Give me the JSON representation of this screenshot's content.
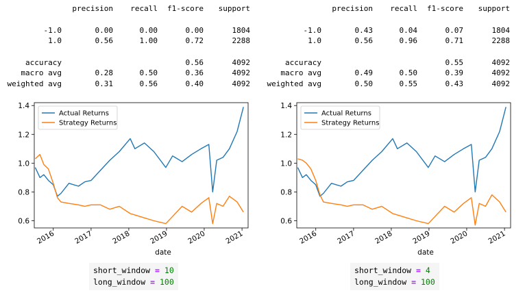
{
  "reports": [
    {
      "header": [
        "precision",
        "recall",
        "f1-score",
        "support"
      ],
      "rows": [
        {
          "label": "-1.0",
          "precision": "0.00",
          "recall": "0.00",
          "f1": "0.00",
          "support": "1804"
        },
        {
          "label": "1.0",
          "precision": "0.56",
          "recall": "1.00",
          "f1": "0.72",
          "support": "2288"
        },
        {
          "label": "accuracy",
          "precision": "",
          "recall": "",
          "f1": "0.56",
          "support": "4092"
        },
        {
          "label": "macro avg",
          "precision": "0.28",
          "recall": "0.50",
          "f1": "0.36",
          "support": "4092"
        },
        {
          "label": "weighted avg",
          "precision": "0.31",
          "recall": "0.56",
          "f1": "0.40",
          "support": "4092"
        }
      ]
    },
    {
      "header": [
        "precision",
        "recall",
        "f1-score",
        "support"
      ],
      "rows": [
        {
          "label": "-1.0",
          "precision": "0.43",
          "recall": "0.04",
          "f1": "0.07",
          "support": "1804"
        },
        {
          "label": "1.0",
          "precision": "0.56",
          "recall": "0.96",
          "f1": "0.71",
          "support": "2288"
        },
        {
          "label": "accuracy",
          "precision": "",
          "recall": "",
          "f1": "0.55",
          "support": "4092"
        },
        {
          "label": "macro avg",
          "precision": "0.49",
          "recall": "0.50",
          "f1": "0.39",
          "support": "4092"
        },
        {
          "label": "weighted avg",
          "precision": "0.50",
          "recall": "0.55",
          "f1": "0.43",
          "support": "4092"
        }
      ]
    }
  ],
  "chart_data": [
    {
      "type": "line",
      "xlabel": "date",
      "ylabel": "",
      "ylim": [
        0.55,
        1.42
      ],
      "xlim": [
        "2015-07-01",
        "2021-03-01"
      ],
      "x_ticks": [
        "2016",
        "2017",
        "2018",
        "2019",
        "2020",
        "2021"
      ],
      "y_ticks": [
        "0.6",
        "0.8",
        "1.0",
        "1.2",
        "1.4"
      ],
      "legend": "top-left",
      "grid": false,
      "series": [
        {
          "name": "Actual Returns",
          "color": "#1f77b4",
          "x": [
            "2015-07-10",
            "2015-08-25",
            "2015-10-01",
            "2015-11-15",
            "2016-01-01",
            "2016-02-10",
            "2016-03-15",
            "2016-06-01",
            "2016-09-01",
            "2016-11-01",
            "2017-01-01",
            "2017-04-01",
            "2017-07-01",
            "2017-10-01",
            "2018-01-15",
            "2018-03-01",
            "2018-06-01",
            "2018-09-01",
            "2018-12-25",
            "2019-03-01",
            "2019-06-01",
            "2019-09-01",
            "2019-12-01",
            "2020-02-15",
            "2020-03-23",
            "2020-05-01",
            "2020-07-01",
            "2020-09-01",
            "2020-11-15",
            "2021-01-15"
          ],
          "y": [
            0.97,
            0.9,
            0.92,
            0.88,
            0.85,
            0.77,
            0.79,
            0.86,
            0.84,
            0.87,
            0.88,
            0.95,
            1.02,
            1.08,
            1.17,
            1.1,
            1.14,
            1.08,
            0.97,
            1.05,
            1.01,
            1.06,
            1.1,
            1.13,
            0.8,
            1.02,
            1.04,
            1.1,
            1.22,
            1.39
          ]
        },
        {
          "name": "Strategy Returns",
          "color": "#ff7f0e",
          "x": [
            "2015-07-10",
            "2015-08-25",
            "2015-10-01",
            "2015-11-15",
            "2016-01-01",
            "2016-02-10",
            "2016-03-15",
            "2016-06-01",
            "2016-09-01",
            "2016-11-01",
            "2017-01-01",
            "2017-04-01",
            "2017-07-01",
            "2017-10-01",
            "2018-01-15",
            "2018-03-01",
            "2018-06-01",
            "2018-09-01",
            "2018-12-25",
            "2019-03-01",
            "2019-06-01",
            "2019-09-01",
            "2019-12-01",
            "2020-02-15",
            "2020-03-23",
            "2020-05-01",
            "2020-07-01",
            "2020-09-01",
            "2020-11-15",
            "2021-01-15"
          ],
          "y": [
            1.03,
            1.06,
            0.99,
            0.96,
            0.86,
            0.76,
            0.73,
            0.72,
            0.71,
            0.7,
            0.71,
            0.71,
            0.68,
            0.7,
            0.65,
            0.64,
            0.62,
            0.6,
            0.58,
            0.63,
            0.7,
            0.66,
            0.72,
            0.76,
            0.58,
            0.72,
            0.7,
            0.77,
            0.73,
            0.66
          ]
        }
      ]
    },
    {
      "type": "line",
      "xlabel": "date",
      "ylabel": "",
      "ylim": [
        0.55,
        1.42
      ],
      "xlim": [
        "2015-07-01",
        "2021-03-01"
      ],
      "x_ticks": [
        "2016",
        "2017",
        "2018",
        "2019",
        "2020",
        "2021"
      ],
      "y_ticks": [
        "0.6",
        "0.8",
        "1.0",
        "1.2",
        "1.4"
      ],
      "legend": "top-left",
      "grid": false,
      "series": [
        {
          "name": "Actual Returns",
          "color": "#1f77b4",
          "x": [
            "2015-07-10",
            "2015-08-25",
            "2015-10-01",
            "2015-11-15",
            "2016-01-01",
            "2016-02-10",
            "2016-03-15",
            "2016-06-01",
            "2016-09-01",
            "2016-11-01",
            "2017-01-01",
            "2017-04-01",
            "2017-07-01",
            "2017-10-01",
            "2018-01-15",
            "2018-03-01",
            "2018-06-01",
            "2018-09-01",
            "2018-12-25",
            "2019-03-01",
            "2019-06-01",
            "2019-09-01",
            "2019-12-01",
            "2020-02-15",
            "2020-03-23",
            "2020-05-01",
            "2020-07-01",
            "2020-09-01",
            "2020-11-15",
            "2021-01-15"
          ],
          "y": [
            0.97,
            0.9,
            0.92,
            0.88,
            0.85,
            0.77,
            0.79,
            0.86,
            0.84,
            0.87,
            0.88,
            0.95,
            1.02,
            1.08,
            1.17,
            1.1,
            1.14,
            1.08,
            0.97,
            1.05,
            1.01,
            1.06,
            1.1,
            1.13,
            0.8,
            1.02,
            1.04,
            1.1,
            1.22,
            1.39
          ]
        },
        {
          "name": "Strategy Returns",
          "color": "#ff7f0e",
          "x": [
            "2015-07-10",
            "2015-08-25",
            "2015-10-01",
            "2015-11-15",
            "2016-01-01",
            "2016-02-10",
            "2016-03-15",
            "2016-06-01",
            "2016-09-01",
            "2016-11-01",
            "2017-01-01",
            "2017-04-01",
            "2017-07-01",
            "2017-10-01",
            "2018-01-15",
            "2018-03-01",
            "2018-06-01",
            "2018-09-01",
            "2018-12-25",
            "2019-03-01",
            "2019-06-01",
            "2019-09-01",
            "2019-12-01",
            "2020-02-15",
            "2020-03-23",
            "2020-05-01",
            "2020-07-01",
            "2020-09-01",
            "2020-11-15",
            "2021-01-15"
          ],
          "y": [
            1.03,
            1.02,
            1.0,
            0.96,
            0.88,
            0.78,
            0.73,
            0.72,
            0.71,
            0.7,
            0.71,
            0.71,
            0.68,
            0.7,
            0.65,
            0.64,
            0.62,
            0.6,
            0.58,
            0.63,
            0.7,
            0.66,
            0.72,
            0.76,
            0.57,
            0.72,
            0.7,
            0.78,
            0.73,
            0.66
          ]
        }
      ]
    }
  ],
  "params": [
    {
      "short_name": "short_window",
      "short_value": "10",
      "long_name": "long_window",
      "long_value": "100",
      "eq": "="
    },
    {
      "short_name": "short_window",
      "short_value": "4",
      "long_name": "long_window",
      "long_value": "100",
      "eq": "="
    }
  ]
}
